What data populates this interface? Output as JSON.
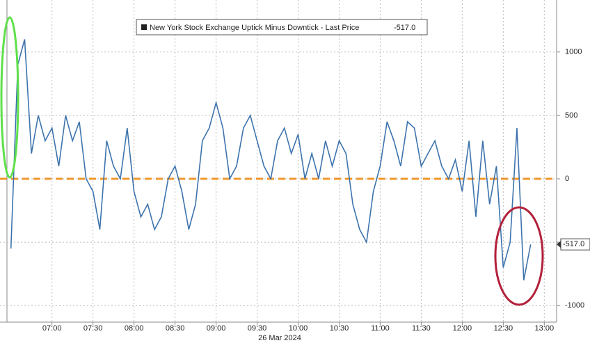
{
  "chart_data": {
    "type": "line",
    "x_label": "26 Mar 2024",
    "x": [
      "06:30",
      "06:35",
      "06:40",
      "06:45",
      "06:50",
      "06:55",
      "07:00",
      "07:05",
      "07:10",
      "07:15",
      "07:20",
      "07:25",
      "07:30",
      "07:35",
      "07:40",
      "07:45",
      "07:50",
      "07:55",
      "08:00",
      "08:05",
      "08:10",
      "08:15",
      "08:20",
      "08:25",
      "08:30",
      "08:35",
      "08:40",
      "08:45",
      "08:50",
      "08:55",
      "09:00",
      "09:05",
      "09:10",
      "09:15",
      "09:20",
      "09:25",
      "09:30",
      "09:35",
      "09:40",
      "09:45",
      "09:50",
      "09:55",
      "10:00",
      "10:05",
      "10:10",
      "10:15",
      "10:20",
      "10:25",
      "10:30",
      "10:35",
      "10:40",
      "10:45",
      "10:50",
      "10:55",
      "11:00",
      "11:05",
      "11:10",
      "11:15",
      "11:20",
      "11:25",
      "11:30",
      "11:35",
      "11:40",
      "11:45",
      "11:50",
      "11:55",
      "12:00",
      "12:05",
      "12:10",
      "12:15",
      "12:20",
      "12:25",
      "12:30",
      "12:35",
      "12:40",
      "12:45",
      "12:50"
    ],
    "series": [
      {
        "name": "New York Stock Exchange Uptick Minus Downtick - Last Price",
        "color": "#3d73ad",
        "values": [
          -550,
          900,
          1100,
          200,
          500,
          300,
          400,
          100,
          500,
          300,
          450,
          0,
          -100,
          -400,
          300,
          100,
          0,
          400,
          -100,
          -300,
          -200,
          -400,
          -300,
          0,
          100,
          -100,
          -400,
          -200,
          300,
          400,
          600,
          400,
          0,
          100,
          400,
          500,
          300,
          100,
          0,
          300,
          400,
          200,
          350,
          0,
          200,
          0,
          300,
          100,
          300,
          200,
          -200,
          -400,
          -500,
          -100,
          100,
          450,
          300,
          100,
          450,
          400,
          100,
          200,
          300,
          100,
          0,
          150,
          -100,
          300,
          -300,
          300,
          -200,
          100,
          -700,
          -500,
          400,
          -800,
          -517
        ]
      }
    ],
    "last_price": {
      "value": -517,
      "label": "-517.0"
    },
    "hline": {
      "value": 0,
      "color": "#f0962a"
    },
    "xlim": [
      "06:22",
      "13:09"
    ],
    "xticks": [
      "07:00",
      "07:30",
      "08:00",
      "08:30",
      "09:00",
      "09:30",
      "10:00",
      "10:30",
      "11:00",
      "11:30",
      "12:00",
      "12:30",
      "13:00"
    ],
    "ylim": [
      -1130,
      1410
    ],
    "yticks": [
      -1000,
      -500,
      0,
      500,
      1000
    ],
    "grid": true
  }
}
